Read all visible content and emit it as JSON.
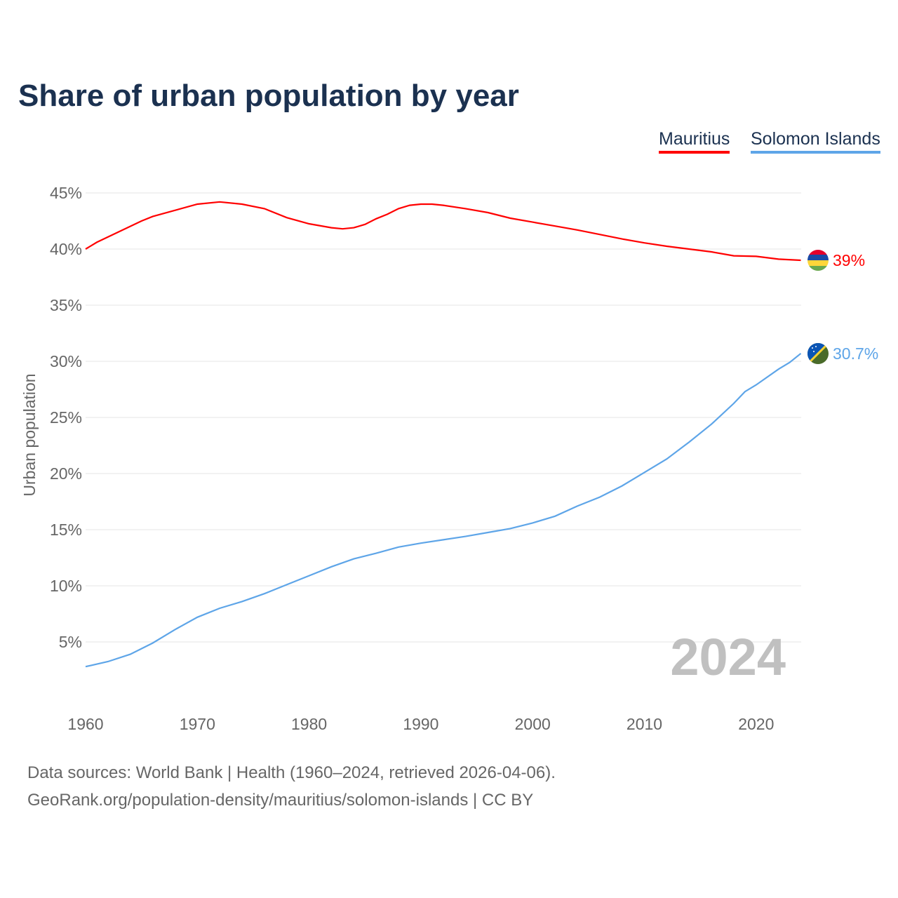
{
  "title": "Share of urban population by year",
  "legend": [
    {
      "name": "Mauritius",
      "color": "#ff0000"
    },
    {
      "name": "Solomon Islands",
      "color": "#5ea5e8"
    }
  ],
  "footer": {
    "line1": "Data sources: World Bank | Health (1960–2024, retrieved 2026-04-06).",
    "line2": "GeoRank.org/population-density/mauritius/solomon-islands | CC BY"
  },
  "chart_data": {
    "type": "line",
    "title": "Share of urban population by year",
    "ylabel": "Urban population",
    "xlabel": "",
    "xlim": [
      1960,
      2024
    ],
    "ylim": [
      0,
      45
    ],
    "xticks": [
      1960,
      1970,
      1980,
      1990,
      2000,
      2010,
      2020
    ],
    "xtick_labels": [
      "1960",
      "1970",
      "1980",
      "1990",
      "2000",
      "2010",
      "2020"
    ],
    "yticks": [
      5,
      10,
      15,
      20,
      25,
      30,
      35,
      40,
      45
    ],
    "ytick_labels": [
      "5%",
      "10%",
      "15%",
      "20%",
      "25%",
      "30%",
      "35%",
      "40%",
      "45%"
    ],
    "grid": true,
    "legend_position": "top-right",
    "year_annotation": "2024",
    "series": [
      {
        "name": "Mauritius",
        "color": "#ff0000",
        "end_label": "39%",
        "flag": "mauritius-flag",
        "x": [
          1960,
          1961,
          1965,
          1966,
          1970,
          1972,
          1974,
          1976,
          1978,
          1980,
          1982,
          1983,
          1984,
          1985,
          1986,
          1987,
          1988,
          1989,
          1990,
          1991,
          1992,
          1994,
          1996,
          1998,
          2000,
          2002,
          2004,
          2006,
          2008,
          2010,
          2012,
          2014,
          2016,
          2018,
          2020,
          2022,
          2024
        ],
        "values": [
          40.0,
          40.6,
          42.5,
          42.9,
          44.0,
          44.2,
          44.0,
          43.6,
          42.8,
          42.25,
          41.9,
          41.8,
          41.9,
          42.2,
          42.7,
          43.1,
          43.6,
          43.9,
          44.0,
          44.0,
          43.9,
          43.6,
          43.25,
          42.75,
          42.4,
          42.05,
          41.7,
          41.3,
          40.9,
          40.55,
          40.25,
          40.0,
          39.75,
          39.4,
          39.35,
          39.1,
          39.0
        ]
      },
      {
        "name": "Solomon Islands",
        "color": "#5ea5e8",
        "end_label": "30.7%",
        "flag": "solomon-islands-flag",
        "x": [
          1960,
          1962,
          1964,
          1966,
          1968,
          1970,
          1972,
          1974,
          1976,
          1978,
          1980,
          1982,
          1984,
          1986,
          1988,
          1990,
          1992,
          1994,
          1996,
          1998,
          2000,
          2002,
          2004,
          2006,
          2008,
          2010,
          2012,
          2014,
          2016,
          2018,
          2019,
          2020,
          2022,
          2023,
          2024
        ],
        "values": [
          2.8,
          3.25,
          3.9,
          4.9,
          6.1,
          7.2,
          8.0,
          8.6,
          9.3,
          10.1,
          10.9,
          11.7,
          12.4,
          12.9,
          13.45,
          13.8,
          14.1,
          14.4,
          14.75,
          15.1,
          15.6,
          16.2,
          17.1,
          17.9,
          18.9,
          20.1,
          21.3,
          22.8,
          24.4,
          26.25,
          27.3,
          27.9,
          29.3,
          29.9,
          30.7
        ]
      }
    ]
  }
}
